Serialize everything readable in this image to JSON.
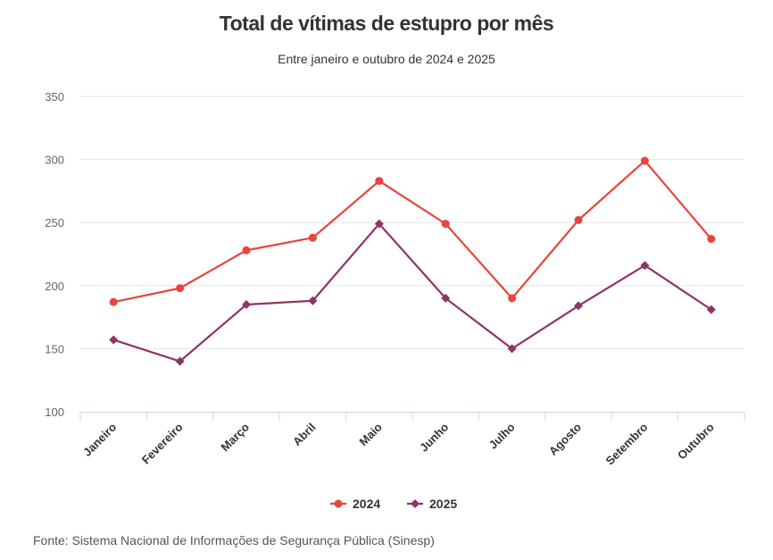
{
  "chart_data": {
    "type": "line",
    "title": "Total de vítimas de estupro por mês",
    "subtitle": "Entre janeiro e outubro de 2024 e 2025",
    "xlabel": "",
    "ylabel": "",
    "categories": [
      "Janeiro",
      "Fevereiro",
      "Março",
      "Abril",
      "Maio",
      "Junho",
      "Julho",
      "Agosto",
      "Setembro",
      "Outubro"
    ],
    "ylim": [
      100,
      350
    ],
    "yticks": [
      100,
      150,
      200,
      250,
      300,
      350
    ],
    "grid": true,
    "legend_position": "bottom",
    "series": [
      {
        "name": "2024",
        "color": "#e8453c",
        "marker": "circle",
        "values": [
          187,
          198,
          228,
          238,
          283,
          249,
          190,
          252,
          299,
          237
        ]
      },
      {
        "name": "2025",
        "color": "#8e3566",
        "marker": "diamond",
        "values": [
          157,
          140,
          185,
          188,
          249,
          190,
          150,
          184,
          216,
          181
        ]
      }
    ],
    "source": "Fonte: Sistema Nacional de Informações de Segurança Pública (Sinesp)"
  }
}
